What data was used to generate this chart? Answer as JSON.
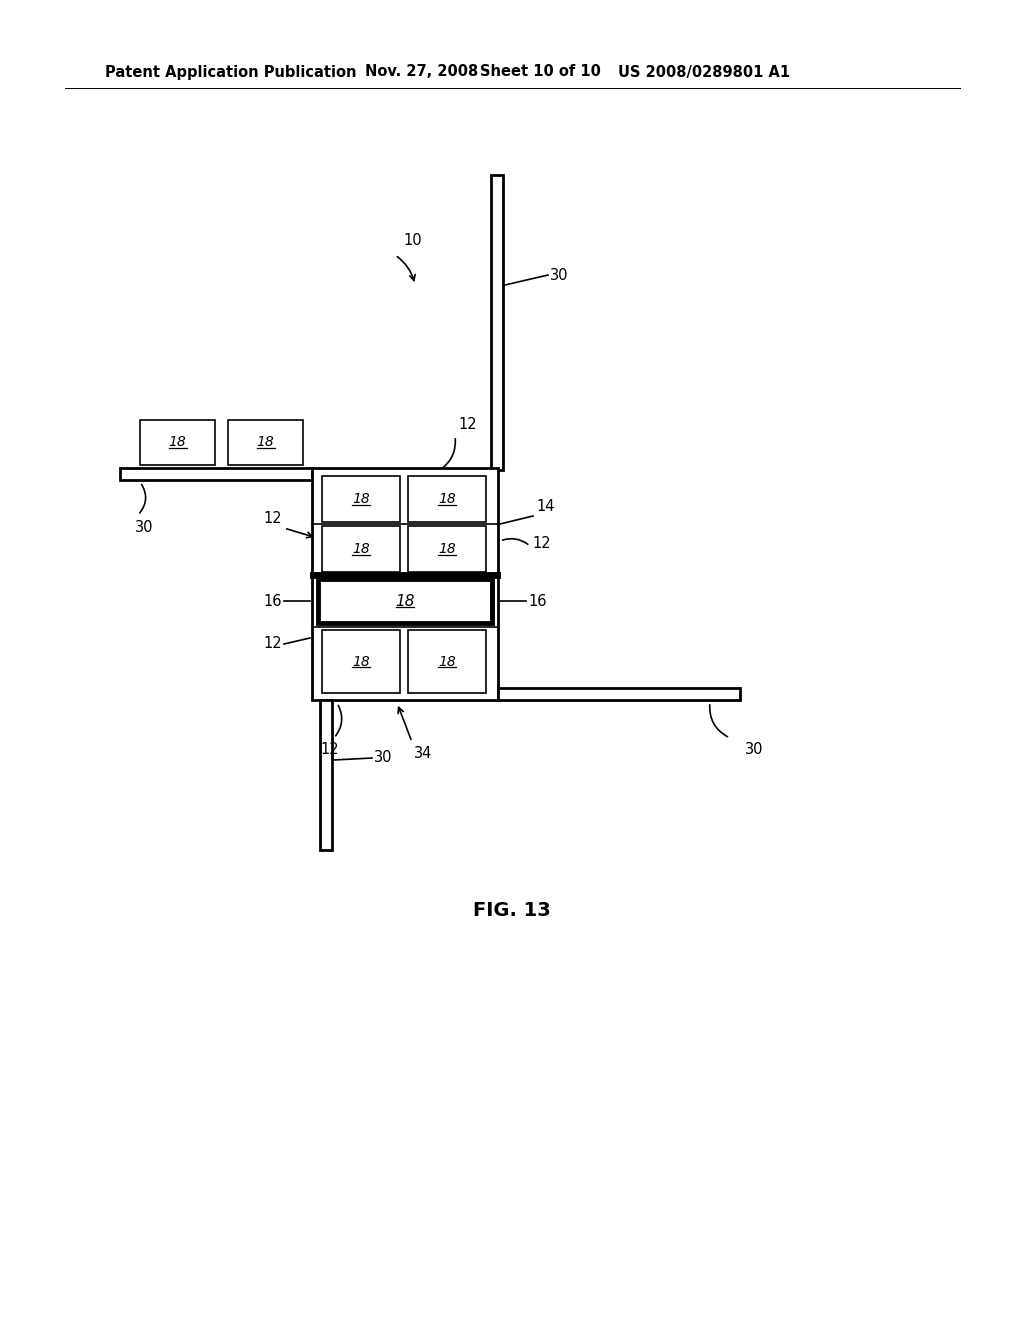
{
  "bg_color": "#ffffff",
  "line_color": "#000000",
  "header_text": "Patent Application Publication",
  "header_date": "Nov. 27, 2008",
  "header_sheet": "Sheet 10 of 10",
  "header_patent": "US 2008/0289801 A1",
  "fig_label": "FIG. 13",
  "ref_10": "10",
  "ref_12": "12",
  "ref_14": "14",
  "ref_16": "16",
  "ref_18": "18",
  "ref_30": "30",
  "ref_34": "34"
}
